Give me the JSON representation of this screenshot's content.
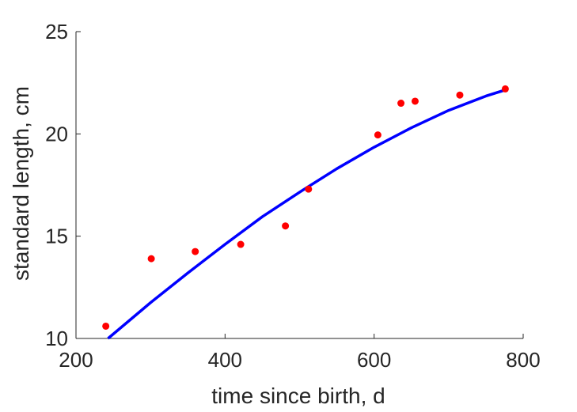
{
  "chart_data": {
    "type": "scatter",
    "xlabel": "time since birth, d",
    "ylabel": "standard length, cm",
    "xlim": [
      200,
      800
    ],
    "ylim": [
      10,
      25
    ],
    "xticks": [
      200,
      400,
      600,
      800
    ],
    "yticks": [
      10,
      15,
      20,
      25
    ],
    "xtick_labels": [
      "200",
      "400",
      "600",
      "800"
    ],
    "ytick_labels": [
      "10",
      "15",
      "20",
      "25"
    ],
    "grid": false,
    "series": [
      {
        "kind": "points",
        "color": "#ff0000",
        "points": [
          {
            "x": 240,
            "y": 10.6
          },
          {
            "x": 301,
            "y": 13.9
          },
          {
            "x": 360,
            "y": 14.25
          },
          {
            "x": 421,
            "y": 14.6
          },
          {
            "x": 481,
            "y": 15.5
          },
          {
            "x": 512,
            "y": 17.3
          },
          {
            "x": 605,
            "y": 19.95
          },
          {
            "x": 636,
            "y": 21.5
          },
          {
            "x": 655,
            "y": 21.6
          },
          {
            "x": 715,
            "y": 21.9
          },
          {
            "x": 776,
            "y": 22.2
          }
        ]
      },
      {
        "kind": "curve",
        "color": "#0000ff",
        "points": [
          {
            "x": 243,
            "y": 10.0
          },
          {
            "x": 300,
            "y": 11.75
          },
          {
            "x": 350,
            "y": 13.2
          },
          {
            "x": 400,
            "y": 14.6
          },
          {
            "x": 450,
            "y": 15.95
          },
          {
            "x": 500,
            "y": 17.15
          },
          {
            "x": 550,
            "y": 18.3
          },
          {
            "x": 600,
            "y": 19.35
          },
          {
            "x": 650,
            "y": 20.3
          },
          {
            "x": 700,
            "y": 21.15
          },
          {
            "x": 750,
            "y": 21.85
          },
          {
            "x": 776,
            "y": 22.15
          }
        ]
      }
    ]
  }
}
